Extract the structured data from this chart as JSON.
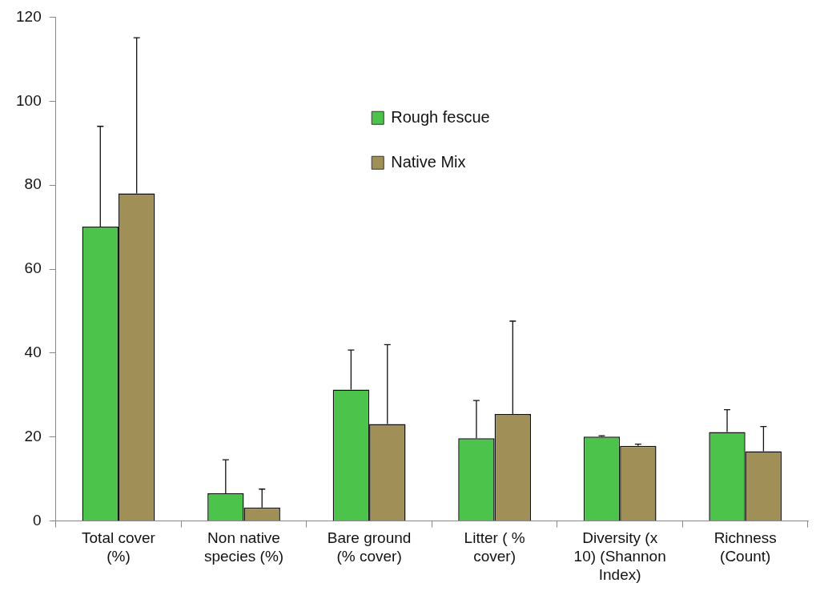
{
  "chart_data": {
    "type": "bar",
    "categories": [
      "Total cover (%)",
      "Non native species (%)",
      "Bare ground (% cover)",
      "Litter ( % cover)",
      "Diversity (x 10) (Shannon Index)",
      "Richness (Count)"
    ],
    "series": [
      {
        "name": "Rough fescue",
        "color": "#4cc44c",
        "values": [
          70.1,
          6.6,
          31.3,
          19.7,
          20.1,
          21.2
        ],
        "errors": [
          [
            70.1,
            94.0
          ],
          [
            6.6,
            14.6
          ],
          [
            31.3,
            40.7
          ],
          [
            19.7,
            28.7
          ],
          [
            20.1,
            20.3
          ],
          [
            21.2,
            26.5
          ]
        ]
      },
      {
        "name": "Native Mix",
        "color": "#a09058",
        "values": [
          78.0,
          3.2,
          23.1,
          25.5,
          17.9,
          16.6
        ],
        "errors": [
          [
            78.0,
            115.1
          ],
          [
            3.2,
            7.6
          ],
          [
            23.1,
            42.0
          ],
          [
            25.5,
            47.6
          ],
          [
            17.9,
            18.3
          ],
          [
            16.6,
            22.5
          ]
        ]
      }
    ],
    "ylim": [
      0,
      120
    ],
    "yticks": [
      0,
      20,
      40,
      60,
      80,
      100,
      120
    ],
    "grid": false,
    "legend": "top"
  }
}
